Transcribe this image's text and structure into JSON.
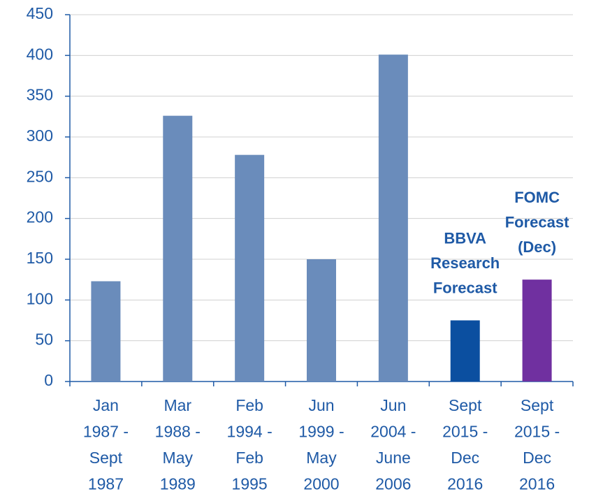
{
  "chart_data": {
    "type": "bar",
    "categories": [
      [
        "Jan",
        "1987 -",
        "Sept",
        "1987"
      ],
      [
        "Mar",
        "1988 -",
        "May",
        "1989"
      ],
      [
        "Feb",
        "1994 -",
        "Feb",
        "1995"
      ],
      [
        "Jun",
        "1999 -",
        "May",
        "2000"
      ],
      [
        "Jun",
        "2004 -",
        "June",
        "2006"
      ],
      [
        "Sept",
        "2015 -",
        "Dec",
        "2016"
      ],
      [
        "Sept",
        "2015 -",
        "Dec",
        "2016"
      ]
    ],
    "values": [
      123,
      326,
      278,
      150,
      401,
      75,
      125
    ],
    "colors": [
      "#6a8cbb",
      "#6a8cbb",
      "#6a8cbb",
      "#6a8cbb",
      "#6a8cbb",
      "#0b4fa0",
      "#7030a0"
    ],
    "annotations": [
      [
        "BBVA",
        "Research",
        "Forecast"
      ],
      [
        "FOMC",
        "Forecast",
        "(Dec)"
      ]
    ],
    "ylim": [
      0,
      450
    ],
    "yticks": [
      0,
      50,
      100,
      150,
      200,
      250,
      300,
      350,
      400,
      450
    ],
    "grid": true
  }
}
